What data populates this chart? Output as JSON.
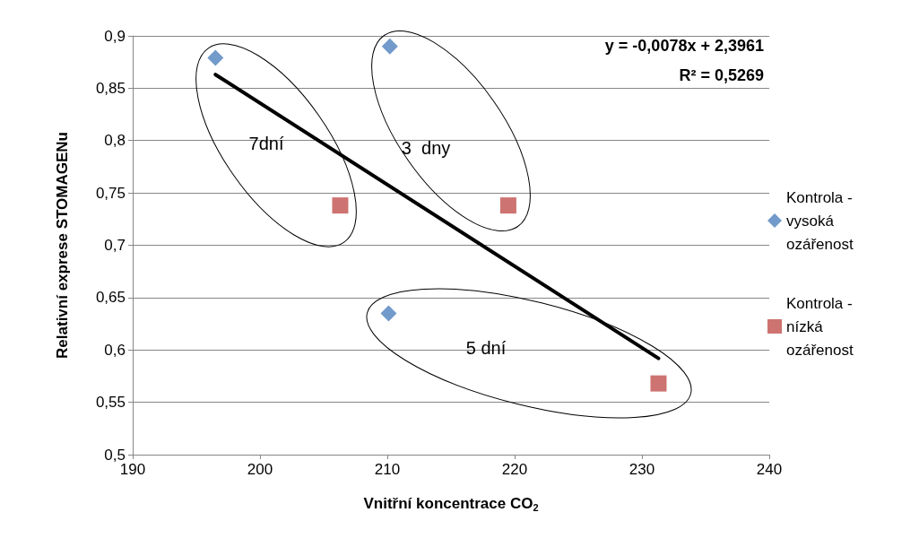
{
  "chart_data": {
    "type": "scatter",
    "xlabel": "Vnitřní koncentrace CO$_{2}$",
    "ylabel": "Relativní exprese STOMAGENu",
    "xlim": [
      190,
      240
    ],
    "xticks": [
      190,
      200,
      210,
      220,
      230,
      240
    ],
    "ylim": [
      0.5,
      0.9
    ],
    "yticks": [
      {
        "value": 0.5,
        "label": "0,5"
      },
      {
        "value": 0.55,
        "label": "0,55"
      },
      {
        "value": 0.6,
        "label": "0,6"
      },
      {
        "value": 0.65,
        "label": "0,65"
      },
      {
        "value": 0.7,
        "label": "0,7"
      },
      {
        "value": 0.75,
        "label": "0,75"
      },
      {
        "value": 0.8,
        "label": "0,8"
      },
      {
        "value": 0.85,
        "label": "0,85"
      },
      {
        "value": 0.9,
        "label": "0,9"
      }
    ],
    "grid": "y",
    "legend": "right",
    "series": [
      {
        "name": "Kontrola - vysoká ozářenost",
        "color": "#4f81bd",
        "marker": "diamond",
        "x": [
          196.5,
          210.2,
          210.1
        ],
        "values": [
          0.879,
          0.89,
          0.635
        ]
      },
      {
        "name": "Kontrola - nízká ozářenost",
        "color": "#c0504d",
        "marker": "square",
        "x": [
          206.3,
          219.5,
          231.3
        ],
        "values": [
          0.738,
          0.738,
          0.568
        ]
      },
      {
        "type": "line",
        "color": "#000000",
        "marker": "none",
        "x": [
          196.5,
          231.3
        ],
        "values": [
          0.863,
          0.592
        ]
      }
    ],
    "annotations": [
      "y = -0,0078x + 2,3961",
      "R² = 0,5269",
      "7dní",
      "3  dny",
      "5 dní"
    ]
  }
}
